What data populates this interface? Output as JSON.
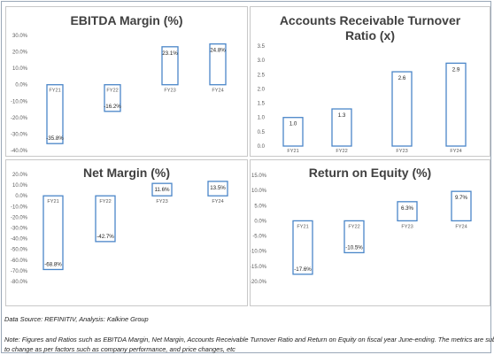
{
  "chart_data": [
    {
      "type": "bar",
      "title": "EBITDA Margin (%)",
      "categories": [
        "FY21",
        "FY22",
        "FY23",
        "FY24"
      ],
      "values": [
        -35.8,
        -16.2,
        23.1,
        24.8
      ],
      "value_labels": [
        "-35.8%",
        "-16.2%",
        "23.1%",
        "24.8%"
      ],
      "ylim": [
        -40,
        30
      ],
      "yticks": [
        30,
        20,
        10,
        0,
        -10,
        -20,
        -30,
        -40
      ],
      "ytick_labels": [
        "30.0%",
        "20.0%",
        "10.0%",
        "0.0%",
        "-10.0%",
        "-20.0%",
        "-30.0%",
        "-40.0%"
      ],
      "bar_fill": "#ffffff",
      "bar_outline": "#4a86c8",
      "grid": false
    },
    {
      "type": "bar",
      "title": "Accounts Receivable Turnover Ratio (x)",
      "categories": [
        "FY21",
        "FY22",
        "FY23",
        "FY24"
      ],
      "values": [
        1.0,
        1.3,
        2.6,
        2.9
      ],
      "value_labels": [
        "1.0",
        "1.3",
        "2.6",
        "2.9"
      ],
      "ylim": [
        0,
        3.5
      ],
      "yticks": [
        3.5,
        3.0,
        2.5,
        2.0,
        1.5,
        1.0,
        0.5,
        0.0
      ],
      "ytick_labels": [
        "3.5",
        "3.0",
        "2.5",
        "2.0",
        "1.5",
        "1.0",
        "0.5",
        "0.0"
      ],
      "bar_fill": "#ffffff",
      "bar_outline": "#4a86c8",
      "grid": false
    },
    {
      "type": "bar",
      "title": "Net Margin (%)",
      "categories": [
        "FY21",
        "FY22",
        "FY23",
        "FY24"
      ],
      "values": [
        -68.8,
        -42.7,
        11.6,
        13.5
      ],
      "value_labels": [
        "-68.8%",
        "-42.7%",
        "11.6%",
        "13.5%"
      ],
      "ylim": [
        -80,
        20
      ],
      "yticks": [
        20,
        10,
        0,
        -10,
        -20,
        -30,
        -40,
        -50,
        -60,
        -70,
        -80
      ],
      "ytick_labels": [
        "20.0%",
        "10.0%",
        "0.0%",
        "-10.0%",
        "-20.0%",
        "-30.0%",
        "-40.0%",
        "-50.0%",
        "-60.0%",
        "-70.0%",
        "-80.0%"
      ],
      "bar_fill": "#ffffff",
      "bar_outline": "#4a86c8",
      "grid": false
    },
    {
      "type": "bar",
      "title": "Return on Equity (%)",
      "categories": [
        "FY21",
        "FY22",
        "FY23",
        "FY24"
      ],
      "values": [
        -17.6,
        -10.5,
        6.3,
        9.7
      ],
      "value_labels": [
        "-17.6%",
        "-10.5%",
        "6.3%",
        "9.7%"
      ],
      "ylim": [
        -20,
        15
      ],
      "yticks": [
        15,
        10,
        5,
        0,
        -5,
        -10,
        -15,
        -20
      ],
      "ytick_labels": [
        "15.0%",
        "10.0%",
        "5.0%",
        "0.0%",
        "-5.0%",
        "-10.0%",
        "-15.0%",
        "-20.0%"
      ],
      "bar_fill": "#ffffff",
      "bar_outline": "#4a86c8",
      "grid": false
    }
  ],
  "source_note": "Data Source: REFINITIV, Analysis: Kalkine Group",
  "disclaimer_line1": "Note: Figures and Ratios such as EBITDA Margin, Net Margin, Accounts Receivable Turnover Ratio and Return on Equity on fiscal year June-ending. The metrics are subject",
  "disclaimer_line2": "to change as per factors such as company performance, and price changes, etc"
}
